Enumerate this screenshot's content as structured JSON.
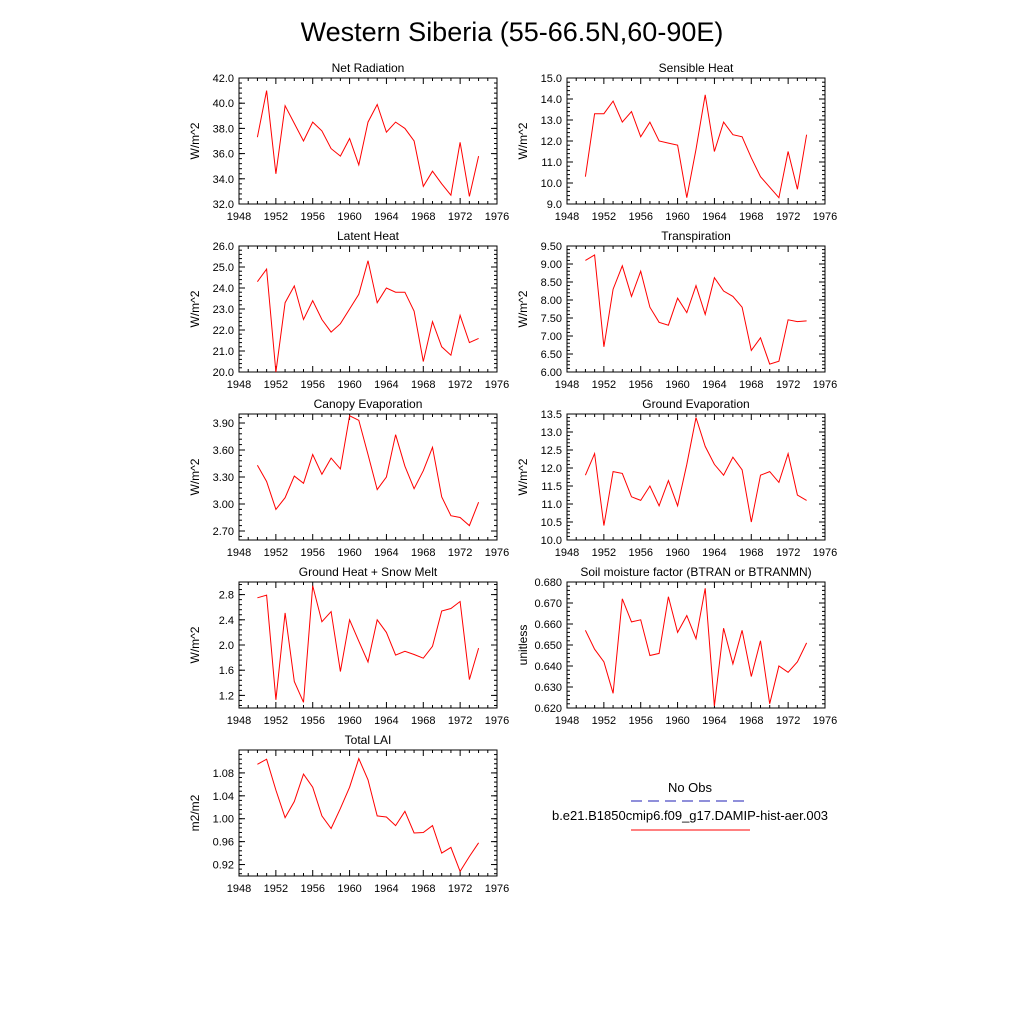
{
  "figure": {
    "title": "Western Siberia (55-66.5N,60-90E)",
    "legend": {
      "entries": [
        {
          "label": "No Obs",
          "color": "#1f1fb4",
          "dash": true
        },
        {
          "label": "b.e21.B1850cmip6.f09_g17.DAMIP-hist-aer.003",
          "color": "#ff0000",
          "dash": false
        }
      ]
    }
  },
  "chart_data": [
    {
      "type": "line",
      "title": "Net Radiation",
      "ylabel": "W/m^2",
      "xlim": [
        1948,
        1976
      ],
      "xticks": [
        1948,
        1952,
        1956,
        1960,
        1964,
        1968,
        1972,
        1976
      ],
      "ylim": [
        32,
        42
      ],
      "yticks": [
        32.0,
        34.0,
        36.0,
        38.0,
        40.0,
        42.0
      ],
      "ytick_labels": [
        "32.0",
        "34.0",
        "36.0",
        "38.0",
        "40.0",
        "42.0"
      ],
      "series": [
        {
          "color": "#ff0000",
          "x": [
            1950,
            1951,
            1952,
            1953,
            1954,
            1955,
            1956,
            1957,
            1958,
            1959,
            1960,
            1961,
            1962,
            1963,
            1964,
            1965,
            1966,
            1967,
            1968,
            1969,
            1970,
            1971,
            1972,
            1973,
            1974
          ],
          "y": [
            37.3,
            41.0,
            34.4,
            39.8,
            38.4,
            37.0,
            38.5,
            37.8,
            36.4,
            35.8,
            37.2,
            35.1,
            38.5,
            39.9,
            37.7,
            38.5,
            38.0,
            37.0,
            33.4,
            34.6,
            33.6,
            32.7,
            36.9,
            32.6,
            35.8
          ]
        }
      ]
    },
    {
      "type": "line",
      "title": "Sensible Heat",
      "ylabel": "W/m^2",
      "xlim": [
        1948,
        1976
      ],
      "xticks": [
        1948,
        1952,
        1956,
        1960,
        1964,
        1968,
        1972,
        1976
      ],
      "ylim": [
        9,
        15
      ],
      "yticks": [
        9.0,
        10.0,
        11.0,
        12.0,
        13.0,
        14.0,
        15.0
      ],
      "ytick_labels": [
        "9.0",
        "10.0",
        "11.0",
        "12.0",
        "13.0",
        "14.0",
        "15.0"
      ],
      "series": [
        {
          "color": "#ff0000",
          "x": [
            1950,
            1951,
            1952,
            1953,
            1954,
            1955,
            1956,
            1957,
            1958,
            1959,
            1960,
            1961,
            1962,
            1963,
            1964,
            1965,
            1966,
            1967,
            1968,
            1969,
            1970,
            1971,
            1972,
            1973,
            1974
          ],
          "y": [
            10.3,
            13.3,
            13.3,
            13.9,
            12.9,
            13.4,
            12.2,
            12.9,
            12.0,
            11.9,
            11.8,
            9.3,
            11.6,
            14.2,
            11.5,
            12.9,
            12.3,
            12.2,
            11.2,
            10.3,
            9.8,
            9.3,
            11.5,
            9.7,
            12.3
          ]
        }
      ]
    },
    {
      "type": "line",
      "title": "Latent Heat",
      "ylabel": "W/m^2",
      "xlim": [
        1948,
        1976
      ],
      "xticks": [
        1948,
        1952,
        1956,
        1960,
        1964,
        1968,
        1972,
        1976
      ],
      "ylim": [
        20,
        26
      ],
      "yticks": [
        20.0,
        21.0,
        22.0,
        23.0,
        24.0,
        25.0,
        26.0
      ],
      "ytick_labels": [
        "20.0",
        "21.0",
        "22.0",
        "23.0",
        "24.0",
        "25.0",
        "26.0"
      ],
      "series": [
        {
          "color": "#ff0000",
          "x": [
            1950,
            1951,
            1952,
            1953,
            1954,
            1955,
            1956,
            1957,
            1958,
            1959,
            1960,
            1961,
            1962,
            1963,
            1964,
            1965,
            1966,
            1967,
            1968,
            1969,
            1970,
            1971,
            1972,
            1973,
            1974
          ],
          "y": [
            24.3,
            24.9,
            20.0,
            23.3,
            24.1,
            22.5,
            23.4,
            22.5,
            21.9,
            22.3,
            23.0,
            23.7,
            25.3,
            23.3,
            24.0,
            23.8,
            23.8,
            22.9,
            20.5,
            22.4,
            21.2,
            20.8,
            22.7,
            21.4,
            21.6
          ]
        }
      ]
    },
    {
      "type": "line",
      "title": "Transpiration",
      "ylabel": "W/m^2",
      "xlim": [
        1948,
        1976
      ],
      "xticks": [
        1948,
        1952,
        1956,
        1960,
        1964,
        1968,
        1972,
        1976
      ],
      "ylim": [
        6,
        9.5
      ],
      "yticks": [
        6.0,
        6.5,
        7.0,
        7.5,
        8.0,
        8.5,
        9.0,
        9.5
      ],
      "ytick_labels": [
        "6.00",
        "6.50",
        "7.00",
        "7.50",
        "8.00",
        "8.50",
        "9.00",
        "9.50"
      ],
      "series": [
        {
          "color": "#ff0000",
          "x": [
            1950,
            1951,
            1952,
            1953,
            1954,
            1955,
            1956,
            1957,
            1958,
            1959,
            1960,
            1961,
            1962,
            1963,
            1964,
            1965,
            1966,
            1967,
            1968,
            1969,
            1970,
            1971,
            1972,
            1973,
            1974
          ],
          "y": [
            9.1,
            9.25,
            6.7,
            8.3,
            8.95,
            8.1,
            8.8,
            7.8,
            7.38,
            7.3,
            8.05,
            7.65,
            8.4,
            7.6,
            8.62,
            8.25,
            8.1,
            7.8,
            6.6,
            6.95,
            6.22,
            6.3,
            7.45,
            7.4,
            7.42
          ]
        }
      ]
    },
    {
      "type": "line",
      "title": "Canopy Evaporation",
      "ylabel": "W/m^2",
      "xlim": [
        1948,
        1976
      ],
      "xticks": [
        1948,
        1952,
        1956,
        1960,
        1964,
        1968,
        1972,
        1976
      ],
      "ylim": [
        2.6,
        4.0
      ],
      "yticks": [
        2.7,
        3.0,
        3.3,
        3.6,
        3.9
      ],
      "ytick_labels": [
        "2.70",
        "3.00",
        "3.30",
        "3.60",
        "3.90"
      ],
      "series": [
        {
          "color": "#ff0000",
          "x": [
            1950,
            1951,
            1952,
            1953,
            1954,
            1955,
            1956,
            1957,
            1958,
            1959,
            1960,
            1961,
            1962,
            1963,
            1964,
            1965,
            1966,
            1967,
            1968,
            1969,
            1970,
            1971,
            1972,
            1973,
            1974
          ],
          "y": [
            3.43,
            3.25,
            2.94,
            3.07,
            3.31,
            3.23,
            3.55,
            3.33,
            3.51,
            3.39,
            3.98,
            3.93,
            3.55,
            3.16,
            3.3,
            3.77,
            3.42,
            3.17,
            3.37,
            3.63,
            3.08,
            2.87,
            2.85,
            2.76,
            3.02
          ]
        }
      ]
    },
    {
      "type": "line",
      "title": "Ground Evaporation",
      "ylabel": "W/m^2",
      "xlim": [
        1948,
        1976
      ],
      "xticks": [
        1948,
        1952,
        1956,
        1960,
        1964,
        1968,
        1972,
        1976
      ],
      "ylim": [
        10,
        13.5
      ],
      "yticks": [
        10.0,
        10.5,
        11.0,
        11.5,
        12.0,
        12.5,
        13.0,
        13.5
      ],
      "ytick_labels": [
        "10.0",
        "10.5",
        "11.0",
        "11.5",
        "12.0",
        "12.5",
        "13.0",
        "13.5"
      ],
      "series": [
        {
          "color": "#ff0000",
          "x": [
            1950,
            1951,
            1952,
            1953,
            1954,
            1955,
            1956,
            1957,
            1958,
            1959,
            1960,
            1961,
            1962,
            1963,
            1964,
            1965,
            1966,
            1967,
            1968,
            1969,
            1970,
            1971,
            1972,
            1973,
            1974
          ],
          "y": [
            11.8,
            12.4,
            10.4,
            11.9,
            11.85,
            11.2,
            11.1,
            11.5,
            10.95,
            11.65,
            10.95,
            12.1,
            13.4,
            12.6,
            12.1,
            11.8,
            12.3,
            11.95,
            10.5,
            11.8,
            11.9,
            11.6,
            12.4,
            11.25,
            11.1
          ]
        }
      ]
    },
    {
      "type": "line",
      "title": "Ground Heat + Snow Melt",
      "ylabel": "W/m^2",
      "xlim": [
        1948,
        1976
      ],
      "xticks": [
        1948,
        1952,
        1956,
        1960,
        1964,
        1968,
        1972,
        1976
      ],
      "ylim": [
        1.0,
        3.0
      ],
      "yticks": [
        1.2,
        1.6,
        2.0,
        2.4,
        2.8
      ],
      "ytick_labels": [
        "1.2",
        "1.6",
        "2.0",
        "2.4",
        "2.8"
      ],
      "series": [
        {
          "color": "#ff0000",
          "x": [
            1950,
            1951,
            1952,
            1953,
            1954,
            1955,
            1956,
            1957,
            1958,
            1959,
            1960,
            1961,
            1962,
            1963,
            1964,
            1965,
            1966,
            1967,
            1968,
            1969,
            1970,
            1971,
            1972,
            1973,
            1974
          ],
          "y": [
            2.75,
            2.79,
            1.13,
            2.51,
            1.42,
            1.09,
            2.94,
            2.37,
            2.53,
            1.58,
            2.4,
            2.06,
            1.73,
            2.4,
            2.2,
            1.84,
            1.9,
            1.85,
            1.79,
            1.98,
            2.54,
            2.58,
            2.69,
            1.45,
            1.95
          ]
        }
      ]
    },
    {
      "type": "line",
      "title": "Soil moisture factor (BTRAN or BTRANMN)",
      "ylabel": "unitless",
      "xlim": [
        1948,
        1976
      ],
      "xticks": [
        1948,
        1952,
        1956,
        1960,
        1964,
        1968,
        1972,
        1976
      ],
      "ylim": [
        0.62,
        0.68
      ],
      "yticks": [
        0.62,
        0.63,
        0.64,
        0.65,
        0.66,
        0.67,
        0.68
      ],
      "ytick_labels": [
        "0.620",
        "0.630",
        "0.640",
        "0.650",
        "0.660",
        "0.670",
        "0.680"
      ],
      "series": [
        {
          "color": "#ff0000",
          "x": [
            1950,
            1951,
            1952,
            1953,
            1954,
            1955,
            1956,
            1957,
            1958,
            1959,
            1960,
            1961,
            1962,
            1963,
            1964,
            1965,
            1966,
            1967,
            1968,
            1969,
            1970,
            1971,
            1972,
            1973,
            1974
          ],
          "y": [
            0.657,
            0.648,
            0.642,
            0.627,
            0.672,
            0.661,
            0.662,
            0.645,
            0.646,
            0.673,
            0.656,
            0.664,
            0.653,
            0.677,
            0.621,
            0.658,
            0.641,
            0.657,
            0.635,
            0.652,
            0.622,
            0.64,
            0.637,
            0.642,
            0.651
          ]
        }
      ]
    },
    {
      "type": "line",
      "title": "Total LAI",
      "ylabel": "m2/m2",
      "xlim": [
        1948,
        1976
      ],
      "xticks": [
        1948,
        1952,
        1956,
        1960,
        1964,
        1968,
        1972,
        1976
      ],
      "ylim": [
        0.9,
        1.12
      ],
      "yticks": [
        0.92,
        0.96,
        1.0,
        1.04,
        1.08
      ],
      "ytick_labels": [
        "0.92",
        "0.96",
        "1.00",
        "1.04",
        "1.08"
      ],
      "series": [
        {
          "color": "#ff0000",
          "x": [
            1950,
            1951,
            1952,
            1953,
            1954,
            1955,
            1956,
            1957,
            1958,
            1959,
            1960,
            1961,
            1962,
            1963,
            1964,
            1965,
            1966,
            1967,
            1968,
            1969,
            1970,
            1971,
            1972,
            1973,
            1974
          ],
          "y": [
            1.095,
            1.104,
            1.05,
            1.002,
            1.03,
            1.078,
            1.055,
            1.005,
            0.983,
            1.018,
            1.055,
            1.105,
            1.068,
            1.005,
            1.003,
            0.988,
            1.013,
            0.975,
            0.976,
            0.988,
            0.94,
            0.95,
            0.908,
            0.934,
            0.958
          ]
        }
      ]
    }
  ]
}
